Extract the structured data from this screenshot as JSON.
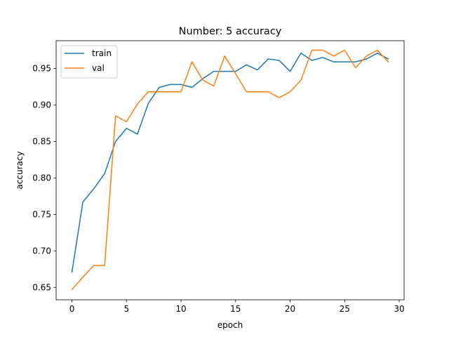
{
  "chart_data": {
    "type": "line",
    "title": "Number: 5 accuracy",
    "xlabel": "epoch",
    "ylabel": "accuracy",
    "xlim": [
      -1.45,
      30.45
    ],
    "ylim": [
      0.633,
      0.988
    ],
    "xticks": [
      0,
      5,
      10,
      15,
      20,
      25,
      30
    ],
    "xtick_labels": [
      "0",
      "5",
      "10",
      "15",
      "20",
      "25",
      "30"
    ],
    "yticks": [
      0.65,
      0.7,
      0.75,
      0.8,
      0.85,
      0.9,
      0.95
    ],
    "ytick_labels": [
      "0.65",
      "0.70",
      "0.75",
      "0.80",
      "0.85",
      "0.90",
      "0.95"
    ],
    "grid": false,
    "legend_position": "upper-left",
    "x": [
      0,
      1,
      2,
      3,
      4,
      5,
      6,
      7,
      8,
      9,
      10,
      11,
      12,
      13,
      14,
      15,
      16,
      17,
      18,
      19,
      20,
      21,
      22,
      23,
      24,
      25,
      26,
      27,
      28,
      29
    ],
    "series": [
      {
        "name": "train",
        "color": "#1f77b4",
        "values": [
          0.671,
          0.767,
          0.785,
          0.806,
          0.85,
          0.868,
          0.86,
          0.902,
          0.924,
          0.928,
          0.928,
          0.924,
          0.936,
          0.946,
          0.946,
          0.946,
          0.955,
          0.948,
          0.963,
          0.961,
          0.946,
          0.971,
          0.961,
          0.965,
          0.959,
          0.959,
          0.959,
          0.963,
          0.971,
          0.963
        ]
      },
      {
        "name": "val",
        "color": "#ff7f0e",
        "values": [
          0.647,
          0.664,
          0.68,
          0.68,
          0.885,
          0.877,
          0.901,
          0.918,
          0.918,
          0.918,
          0.918,
          0.959,
          0.934,
          0.926,
          0.967,
          0.943,
          0.918,
          0.918,
          0.918,
          0.91,
          0.918,
          0.934,
          0.975,
          0.975,
          0.967,
          0.975,
          0.951,
          0.967,
          0.975,
          0.959
        ]
      }
    ]
  }
}
